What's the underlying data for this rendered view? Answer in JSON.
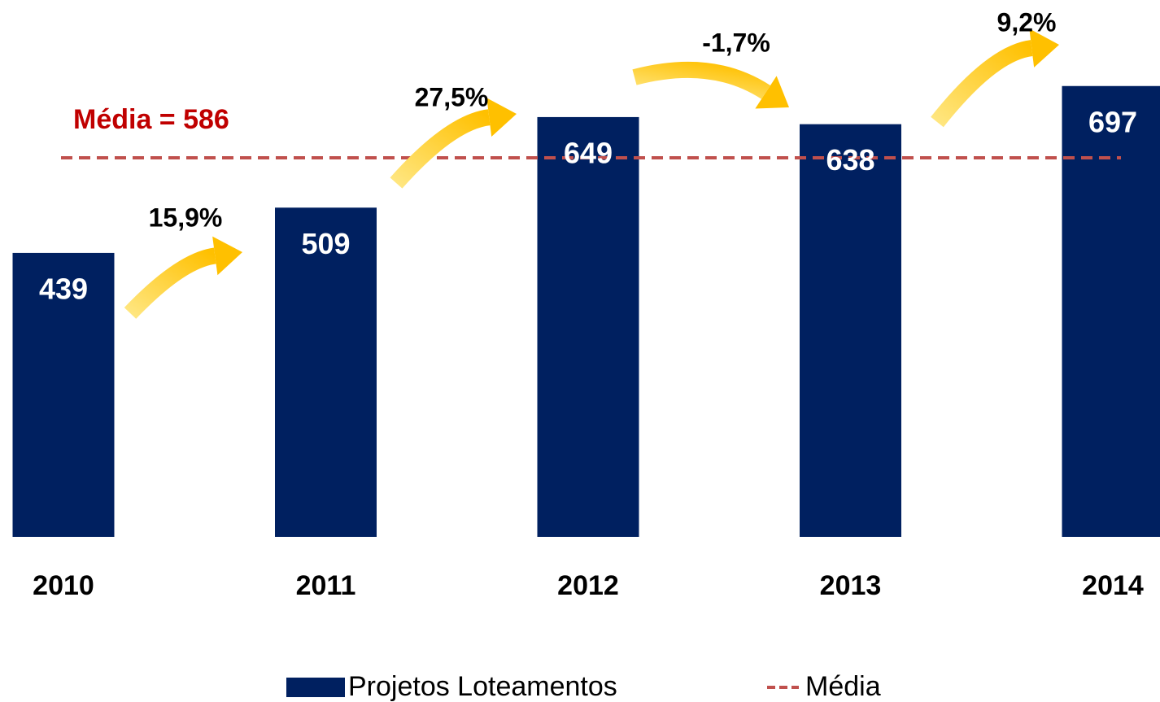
{
  "chart_data": {
    "type": "bar",
    "categories": [
      "2010",
      "2011",
      "2012",
      "2013",
      "2014"
    ],
    "series": [
      {
        "name": "Projetos Loteamentos",
        "color": "#002060",
        "values": [
          439,
          509,
          649,
          638,
          697
        ]
      }
    ],
    "ylim": [
      0,
      830
    ],
    "average": {
      "name": "Média",
      "value": 586,
      "label": "Média = 586",
      "color": "#c0504d",
      "label_color": "#c00000"
    },
    "growth": {
      "values": [
        15.9,
        27.5,
        -1.7,
        9.2
      ],
      "value_labels": [
        "15,9%",
        "27,5%",
        "-1,7%",
        "9,2%"
      ],
      "color": "#ffc000"
    }
  }
}
